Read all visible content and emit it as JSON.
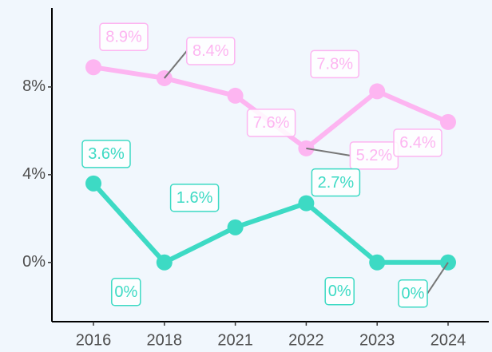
{
  "chart_data": {
    "type": "line",
    "categories": [
      "2016",
      "2018",
      "2021",
      "2022",
      "2023",
      "2024"
    ],
    "series": [
      {
        "color": "#fdb5f1",
        "values": [
          8.9,
          8.4,
          7.6,
          5.2,
          7.8,
          6.4
        ],
        "value_labels": [
          "8.9%",
          "8.4%",
          "7.6%",
          "5.2%",
          "7.8%",
          "6.4%"
        ]
      },
      {
        "color": "#3ddac4",
        "values": [
          3.6,
          0,
          1.6,
          2.7,
          0,
          0
        ],
        "value_labels": [
          "3.6%",
          "0%",
          "1.6%",
          "2.7%",
          "0%",
          "0%"
        ]
      }
    ],
    "ylim": [
      -2.7,
      11.6
    ],
    "yticks": [
      {
        "value": 0,
        "label": "0%"
      },
      {
        "value": 4,
        "label": "4%"
      },
      {
        "value": 8,
        "label": "8%"
      }
    ],
    "grid": false
  }
}
